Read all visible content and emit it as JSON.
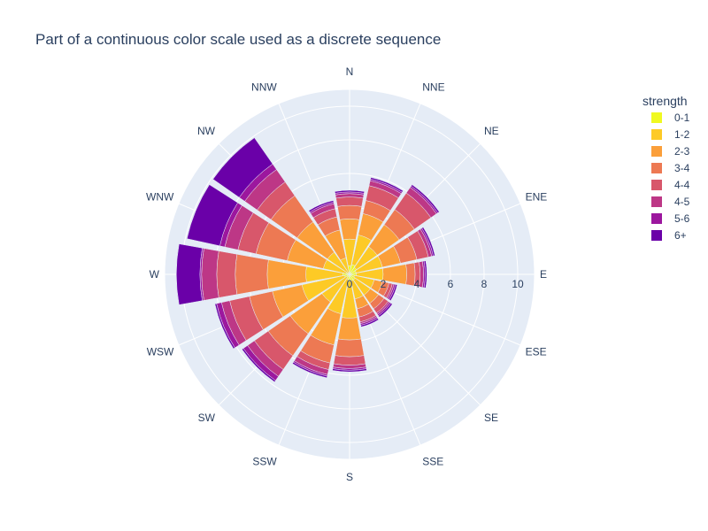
{
  "chart_data": {
    "type": "barpolar",
    "title": "Part of a continuous color scale used as a discrete sequence",
    "angular_categories": [
      "N",
      "NNE",
      "NE",
      "ENE",
      "E",
      "ESE",
      "SE",
      "SSE",
      "S",
      "SSW",
      "SW",
      "WSW",
      "W",
      "WNW",
      "NW",
      "NNW"
    ],
    "radial_ticks": [
      "0",
      "2",
      "4",
      "6",
      "8",
      "10"
    ],
    "radial_range": [
      0,
      11
    ],
    "direction": "clockwise",
    "rotation": "N at top",
    "legend_title": "strength",
    "legend_position": "top-right",
    "series": [
      {
        "name": "0-1",
        "color": "#f0f921",
        "values": [
          0.5,
          0.6,
          0.5,
          0.4,
          0.4,
          0.3,
          0.4,
          0.4,
          0.4,
          0.3,
          0.2,
          0.3,
          0.4,
          0.2,
          0.1,
          0.1
        ]
      },
      {
        "name": "1-2",
        "color": "#fdca26",
        "values": [
          1.6,
          1.8,
          1.5,
          1.6,
          1.6,
          1.2,
          1.1,
          1.1,
          2.2,
          2.1,
          1.8,
          2.6,
          2.2,
          1.4,
          1.5,
          0.9
        ]
      },
      {
        "name": "2-3",
        "color": "#fb9f3a",
        "values": [
          1.2,
          1.3,
          1.6,
          1.1,
          1.4,
          0.5,
          0.6,
          0.6,
          1.3,
          1.9,
          2.3,
          1.8,
          2.3,
          2.2,
          2.2,
          1.7
        ]
      },
      {
        "name": "3-4",
        "color": "#ed7953",
        "values": [
          0.8,
          0.8,
          1.1,
          1.0,
          0.5,
          0.4,
          0.4,
          0.5,
          1.0,
          1.1,
          1.6,
          1.4,
          1.9,
          1.9,
          1.9,
          0.8
        ]
      },
      {
        "name": "4-4",
        "color": "#d8576b",
        "values": [
          0.5,
          0.9,
          1.2,
          0.7,
          0.3,
          0.2,
          0.3,
          0.3,
          0.5,
          0.4,
          1.0,
          1.2,
          1.1,
          1.1,
          1.0,
          0.5
        ]
      },
      {
        "name": "4-5",
        "color": "#bd3786",
        "values": [
          0.2,
          0.3,
          0.4,
          0.2,
          0.2,
          0.1,
          0.1,
          0.1,
          0.2,
          0.3,
          0.5,
          0.5,
          0.9,
          0.8,
          0.9,
          0.3
        ]
      },
      {
        "name": "5-6",
        "color": "#9c179e",
        "values": [
          0.1,
          0.1,
          0.1,
          0.1,
          0.1,
          0.1,
          0.1,
          0.1,
          0.1,
          0.1,
          0.3,
          0.3,
          0.1,
          0.3,
          0.4,
          0.1
        ]
      },
      {
        "name": "6+",
        "color": "#6a00a8",
        "values": [
          0.1,
          0.1,
          0.1,
          0.1,
          0.1,
          0.1,
          0.1,
          0.1,
          0.1,
          0.1,
          0.1,
          0.1,
          1.4,
          2.0,
          1.9,
          0.1
        ]
      }
    ]
  }
}
